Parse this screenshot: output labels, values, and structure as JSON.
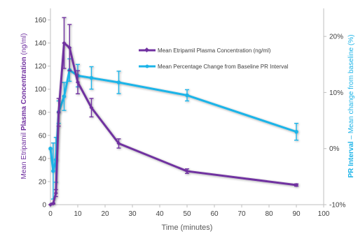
{
  "chart_data": {
    "type": "line",
    "xlabel": "Time (minutes)",
    "ylabel_left": {
      "prefix": "Mean Etripamil ",
      "bold": "Plasma Concentration",
      "suffix": " (ng/ml)"
    },
    "ylabel_right": {
      "bold": "PR Interval",
      "suffix": " – Mean change from baseline (%)"
    },
    "xlim": [
      0,
      100
    ],
    "x_ticks": [
      0,
      10,
      20,
      30,
      40,
      50,
      60,
      70,
      80,
      90,
      100
    ],
    "ylim_left": [
      0,
      170
    ],
    "y_ticks_left": [
      0,
      20,
      40,
      60,
      80,
      100,
      120,
      140,
      160
    ],
    "ylim_right_pct": [
      -10,
      25
    ],
    "y_ticks_right": [
      {
        "v": -10,
        "label": "-10%"
      },
      {
        "v": 0,
        "label": "0%"
      },
      {
        "v": 10,
        "label": "10%"
      },
      {
        "v": 20,
        "label": "20%"
      }
    ],
    "legend_position": "upper-right",
    "colors": {
      "plasma": "#7030a0",
      "pr": "#1cb4e8",
      "axis": "#bfbfbf",
      "text": "#595959",
      "tick": "#404040"
    },
    "series": [
      {
        "name": "Mean Etripamil Plasma Concentration (ng/ml)",
        "axis": "left",
        "color": "#7030a0",
        "marker": "diamond",
        "x": [
          0,
          1,
          2,
          3,
          5,
          7,
          10,
          15,
          25,
          50,
          90
        ],
        "y": [
          0,
          1,
          10,
          80,
          140,
          136,
          106,
          84,
          53,
          29,
          17
        ],
        "err": [
          0,
          0.5,
          3,
          12,
          22,
          20,
          10,
          8,
          4,
          2,
          1
        ]
      },
      {
        "name": "Mean Percentage Change from Baseline PR Interval",
        "axis": "right",
        "color": "#1cb4e8",
        "marker": "circle",
        "x": [
          0,
          1,
          2,
          3,
          5,
          7,
          10,
          15,
          25,
          50,
          90
        ],
        "y": [
          0,
          -4,
          -2,
          6.5,
          9.3,
          14,
          13,
          12.6,
          11.8,
          9.5,
          3
        ],
        "err": [
          0,
          5,
          4,
          2,
          2.5,
          2,
          2,
          2,
          2,
          1,
          1.5
        ]
      }
    ]
  }
}
